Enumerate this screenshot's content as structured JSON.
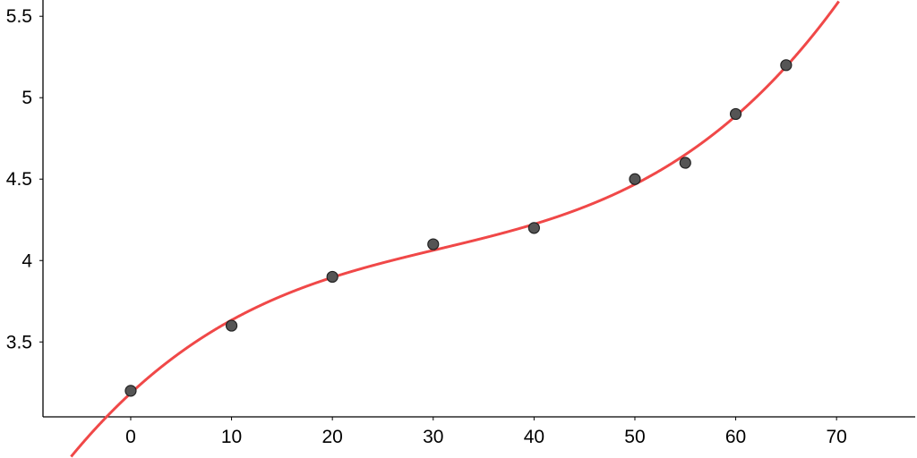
{
  "chart_data": {
    "type": "scatter",
    "title": "",
    "xlabel": "",
    "ylabel": "",
    "xlim": [
      -8.7,
      77.8
    ],
    "ylim": [
      3.04,
      5.6
    ],
    "x_ticks": [
      0,
      10,
      20,
      30,
      40,
      50,
      60,
      70
    ],
    "x_tick_labels": [
      "0",
      "10",
      "20",
      "30",
      "40",
      "50",
      "60",
      "70"
    ],
    "y_ticks": [
      3.5,
      4,
      4.5,
      5,
      5.5
    ],
    "y_tick_labels": [
      "3.5",
      "4",
      "4.5",
      "5",
      "5.5"
    ],
    "grid": false,
    "points": {
      "x": [
        0,
        10,
        20,
        30,
        40,
        50,
        55,
        60,
        65
      ],
      "y": [
        3.2,
        3.6,
        3.9,
        4.1,
        4.2,
        4.5,
        4.6,
        4.9,
        5.2
      ]
    },
    "trend_curve": {
      "type": "cubic polynomial fit",
      "x_range": [
        -8,
        72
      ]
    },
    "colors": {
      "points_fill": "#555555",
      "points_stroke": "#222222",
      "curve": "#f04848",
      "axis": "#000000"
    }
  }
}
